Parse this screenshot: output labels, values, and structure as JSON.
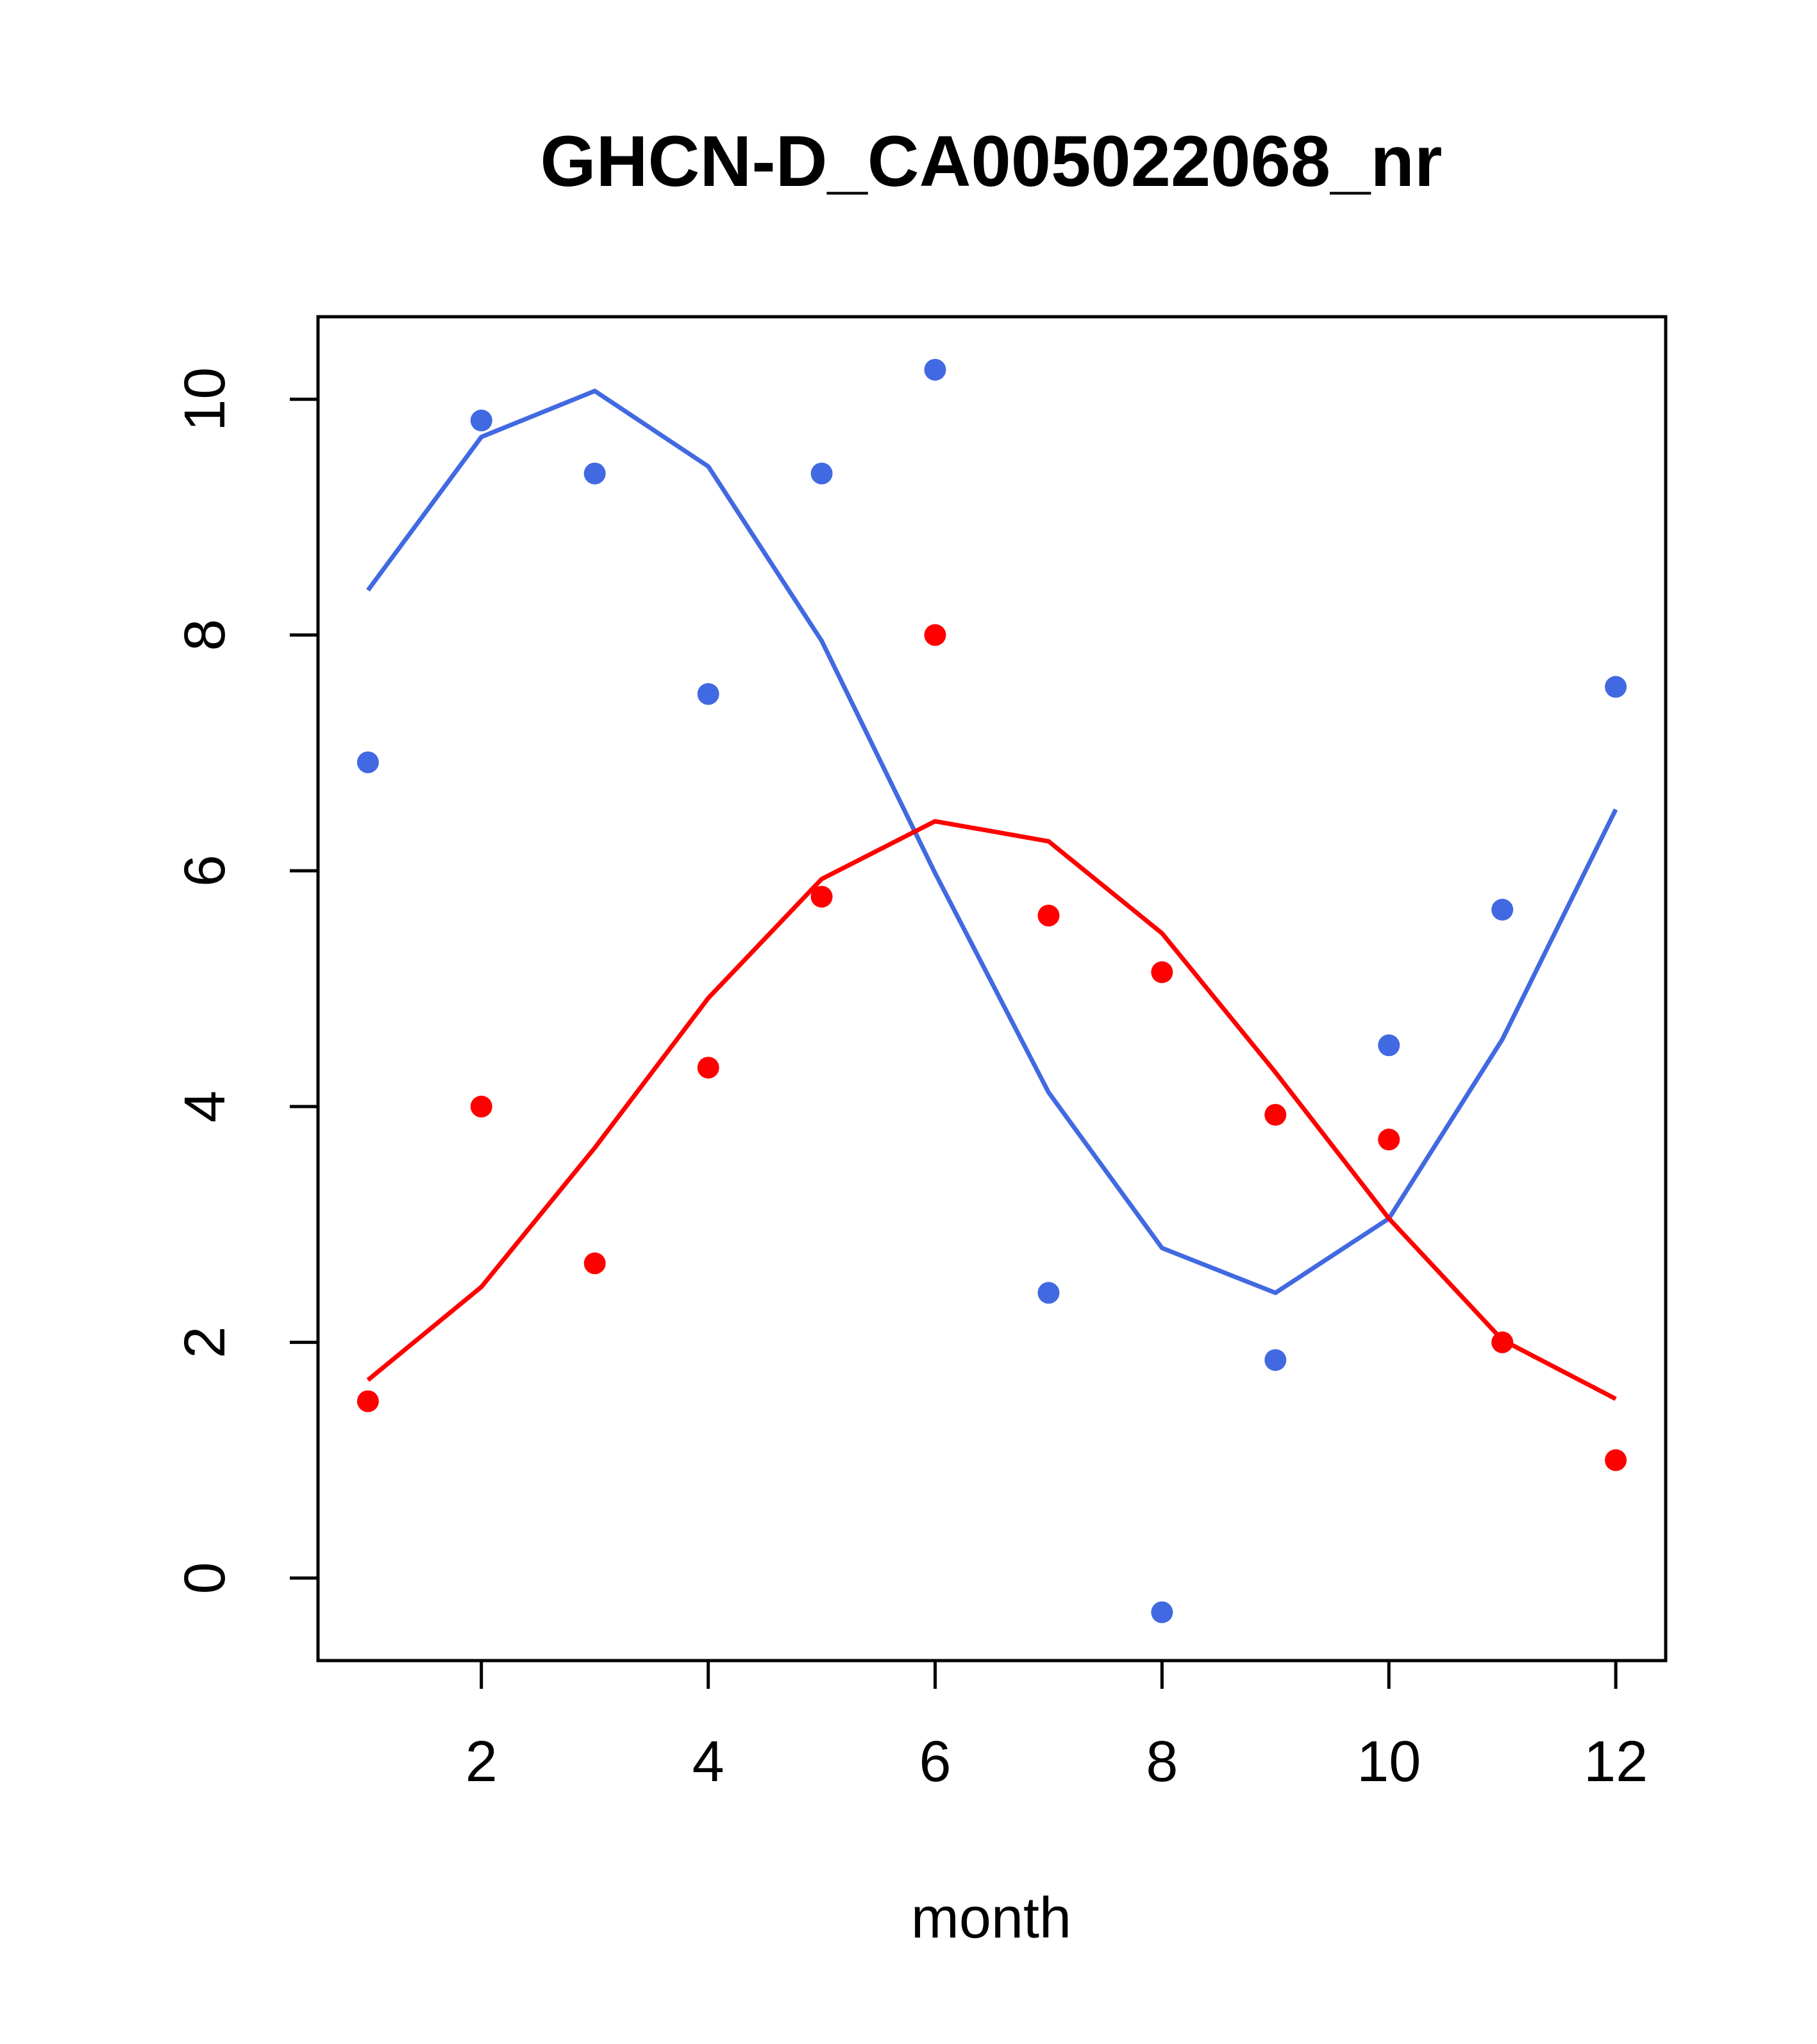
{
  "chart_data": {
    "type": "line",
    "title": "GHCN-D_CA005022068_nr",
    "xlabel": "month",
    "ylabel": "",
    "xlim": [
      0.56,
      12.44
    ],
    "ylim": [
      -0.7,
      10.7
    ],
    "x_ticks": [
      2,
      4,
      6,
      8,
      10,
      12
    ],
    "y_ticks": [
      0,
      2,
      4,
      6,
      8,
      10
    ],
    "grid": false,
    "legend": "none",
    "series": [
      {
        "color": "#4169E1",
        "points_x": [
          1,
          2,
          3,
          4,
          5,
          6,
          7,
          8,
          9,
          10,
          11,
          12
        ],
        "points_y": [
          6.92,
          9.82,
          9.37,
          7.5,
          9.37,
          10.25,
          2.42,
          -0.29,
          1.85,
          4.52,
          5.67,
          7.56
        ],
        "line_x": [
          1,
          2,
          3,
          4,
          5,
          6,
          7,
          8,
          9,
          10,
          11,
          12
        ],
        "line_y": [
          8.38,
          9.68,
          10.07,
          9.43,
          7.95,
          5.98,
          4.12,
          2.8,
          2.42,
          3.05,
          4.57,
          6.52
        ]
      },
      {
        "color": "#FF0000",
        "points_x": [
          1,
          2,
          3,
          4,
          5,
          6,
          7,
          8,
          9,
          10,
          11,
          12
        ],
        "points_y": [
          1.5,
          4.0,
          2.67,
          4.33,
          5.78,
          8.0,
          5.62,
          5.14,
          3.93,
          3.72,
          2.0,
          1.0
        ],
        "line_x": [
          1,
          2,
          3,
          4,
          5,
          6,
          7,
          8,
          9,
          10,
          11,
          12
        ],
        "line_y": [
          1.68,
          2.47,
          3.65,
          4.92,
          5.93,
          6.42,
          6.25,
          5.47,
          4.29,
          3.05,
          2.02,
          1.52
        ]
      }
    ]
  }
}
